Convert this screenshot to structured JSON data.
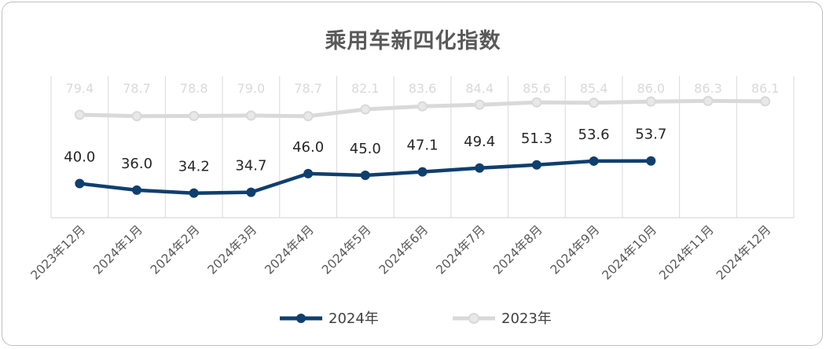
{
  "chart_data": {
    "type": "line",
    "title": "乘用车新四化指数",
    "categories": [
      "2023年12月",
      "2024年1月",
      "2024年2月",
      "2024年3月",
      "2024年4月",
      "2024年5月",
      "2024年6月",
      "2024年7月",
      "2024年8月",
      "2024年9月",
      "2024年10月",
      "2024年11月",
      "2024年12月"
    ],
    "series": [
      {
        "name": "2024年",
        "color": "#0f3f6e",
        "values": [
          40.0,
          36.0,
          34.2,
          34.7,
          46.0,
          45.0,
          47.1,
          49.4,
          51.3,
          53.6,
          53.7,
          null,
          null
        ]
      },
      {
        "name": "2023年",
        "color": "#d9d9d9",
        "values": [
          79.4,
          78.7,
          78.8,
          79.0,
          78.7,
          82.1,
          83.6,
          84.4,
          85.6,
          85.4,
          86.0,
          86.3,
          86.1
        ]
      }
    ],
    "xlabel": "",
    "ylabel": "",
    "ylim": [
      0,
      100
    ],
    "grid": "vertical",
    "legend": "bottom"
  }
}
